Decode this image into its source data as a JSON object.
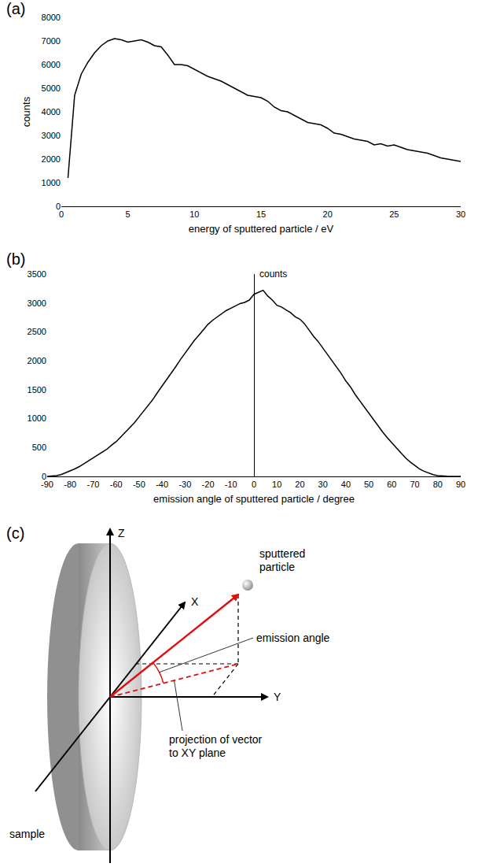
{
  "chart_data": [
    {
      "type": "line",
      "panel": "(a)",
      "x_label": "energy of sputtered particle / eV",
      "y_label": "counts",
      "x": [
        0.5,
        1,
        1.5,
        2,
        2.5,
        3,
        3.5,
        4,
        4.5,
        5,
        5.5,
        6,
        6.5,
        7,
        7.5,
        8,
        8.5,
        9,
        9.5,
        10,
        10.5,
        11,
        11.5,
        12,
        12.5,
        13,
        13.5,
        14,
        14.5,
        15,
        15.5,
        16,
        16.5,
        17,
        17.5,
        18,
        18.5,
        19,
        19.5,
        20,
        20.5,
        21,
        21.5,
        22,
        22.5,
        23,
        23.5,
        24,
        24.5,
        25,
        25.5,
        26,
        26.5,
        27,
        27.5,
        28,
        28.5,
        29,
        29.5,
        30
      ],
      "values": [
        1200,
        4700,
        5600,
        6100,
        6500,
        6800,
        7000,
        7100,
        7050,
        6950,
        7000,
        7050,
        6950,
        6800,
        6750,
        6400,
        6000,
        6000,
        5950,
        5800,
        5650,
        5500,
        5400,
        5300,
        5150,
        5000,
        4850,
        4700,
        4650,
        4600,
        4450,
        4200,
        4050,
        4000,
        3850,
        3700,
        3550,
        3500,
        3450,
        3300,
        3100,
        3050,
        2950,
        2850,
        2800,
        2750,
        2600,
        2650,
        2550,
        2600,
        2500,
        2400,
        2350,
        2300,
        2250,
        2150,
        2050,
        2000,
        1950,
        1900
      ],
      "color": "#000000",
      "xlim": [
        0,
        30
      ],
      "xticks": [
        0,
        5,
        10,
        15,
        20,
        25,
        30
      ],
      "ylim": [
        0,
        8000
      ],
      "yticks": [
        0,
        1000,
        2000,
        3000,
        4000,
        5000,
        6000,
        7000,
        8000
      ],
      "grid": false
    },
    {
      "type": "line",
      "panel": "(b)",
      "x_label": "emission angle of sputtered particle / degree",
      "y_label": "counts",
      "x": [
        -90,
        -88,
        -86,
        -84,
        -82,
        -80,
        -78,
        -76,
        -74,
        -72,
        -70,
        -68,
        -66,
        -64,
        -62,
        -60,
        -58,
        -56,
        -54,
        -52,
        -50,
        -48,
        -46,
        -44,
        -42,
        -40,
        -38,
        -36,
        -34,
        -32,
        -30,
        -28,
        -26,
        -24,
        -22,
        -20,
        -18,
        -16,
        -14,
        -12,
        -10,
        -8,
        -6,
        -4,
        -2,
        0,
        2,
        4,
        6,
        8,
        10,
        12,
        14,
        16,
        18,
        20,
        22,
        24,
        26,
        28,
        30,
        32,
        34,
        36,
        38,
        40,
        42,
        44,
        46,
        48,
        50,
        52,
        54,
        56,
        58,
        60,
        62,
        64,
        66,
        68,
        70,
        72,
        74,
        76,
        78,
        80,
        82,
        84,
        86,
        88,
        90
      ],
      "values": [
        0,
        5,
        15,
        30,
        60,
        90,
        130,
        170,
        220,
        270,
        310,
        360,
        420,
        470,
        540,
        600,
        680,
        760,
        850,
        930,
        1030,
        1130,
        1230,
        1330,
        1450,
        1560,
        1680,
        1780,
        1900,
        2020,
        2130,
        2230,
        2350,
        2440,
        2540,
        2630,
        2700,
        2760,
        2820,
        2870,
        2910,
        2950,
        2990,
        3010,
        3050,
        3150,
        3180,
        3220,
        3120,
        3050,
        2960,
        2930,
        2880,
        2830,
        2760,
        2720,
        2640,
        2530,
        2420,
        2330,
        2220,
        2120,
        2000,
        1900,
        1780,
        1650,
        1550,
        1420,
        1310,
        1200,
        1090,
        980,
        870,
        770,
        670,
        580,
        490,
        400,
        320,
        250,
        190,
        130,
        90,
        55,
        30,
        15,
        5,
        2,
        0,
        0,
        0
      ],
      "color": "#000000",
      "xlim": [
        -90,
        90
      ],
      "xticks": [
        -90,
        -80,
        -70,
        -60,
        -50,
        -40,
        -30,
        -20,
        -10,
        0,
        10,
        20,
        30,
        40,
        50,
        60,
        70,
        80,
        90
      ],
      "ylim": [
        0,
        3500
      ],
      "yticks": [
        0,
        500,
        1000,
        1500,
        2000,
        2500,
        3000,
        3500
      ],
      "grid": false
    }
  ],
  "diagram": {
    "panel": "(c)",
    "axis_labels": {
      "x": "X",
      "y": "Y",
      "z": "Z"
    },
    "particle_label": [
      "sputtered",
      "particle"
    ],
    "angle_label": [
      "emission angle"
    ],
    "projection_label": [
      "projection of vector",
      "to XY plane"
    ],
    "sample_label": "sample"
  }
}
